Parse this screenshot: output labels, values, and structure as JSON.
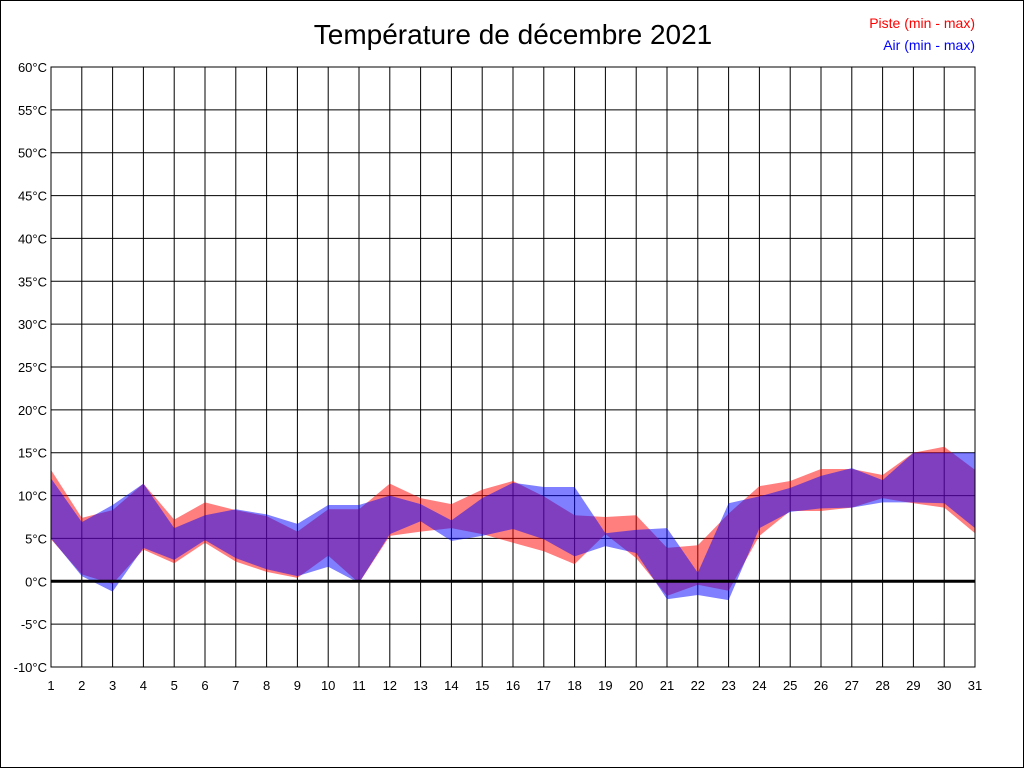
{
  "chart_data": {
    "type": "area",
    "title": "Température de décembre 2021",
    "xlabel": "",
    "ylabel": "",
    "x": [
      1,
      2,
      3,
      4,
      5,
      6,
      7,
      8,
      9,
      10,
      11,
      12,
      13,
      14,
      15,
      16,
      17,
      18,
      19,
      20,
      21,
      22,
      23,
      24,
      25,
      26,
      27,
      28,
      29,
      30,
      31
    ],
    "xlim": [
      1,
      31
    ],
    "ylim": [
      -10,
      60
    ],
    "yticks": [
      -10,
      -5,
      0,
      5,
      10,
      15,
      20,
      25,
      30,
      35,
      40,
      45,
      50,
      55,
      60
    ],
    "ytick_suffix": "°C",
    "grid": true,
    "legend_position": "top-right",
    "series": [
      {
        "name": "Piste (min - max)",
        "color": "#ff0000",
        "max": [
          13.0,
          7.4,
          8.3,
          11.4,
          7.2,
          9.2,
          8.3,
          7.6,
          5.8,
          8.4,
          8.4,
          11.4,
          9.7,
          9.0,
          10.7,
          11.7,
          9.9,
          7.7,
          7.5,
          7.7,
          3.9,
          4.2,
          7.9,
          11.1,
          11.7,
          13.1,
          13.1,
          12.4,
          15.0,
          15.7,
          13.0
        ],
        "min": [
          4.9,
          0.8,
          -0.3,
          3.7,
          2.1,
          4.5,
          2.3,
          1.1,
          0.4,
          3.0,
          -0.2,
          5.3,
          5.8,
          6.2,
          5.5,
          4.5,
          3.5,
          2.0,
          5.5,
          2.7,
          -1.7,
          -0.4,
          -1.1,
          5.3,
          8.2,
          8.2,
          8.6,
          9.7,
          9.1,
          8.6,
          5.6
        ]
      },
      {
        "name": "Air (min - max)",
        "color": "#0000ff",
        "max": [
          12.0,
          6.9,
          8.9,
          11.4,
          6.2,
          7.7,
          8.4,
          7.8,
          6.7,
          8.9,
          8.9,
          10.0,
          9.0,
          7.1,
          9.7,
          11.5,
          11.0,
          11.0,
          5.6,
          6.0,
          6.2,
          1.0,
          9.1,
          9.9,
          10.9,
          12.3,
          13.2,
          11.8,
          15.0,
          15.0,
          15.0
        ],
        "min": [
          5.0,
          0.6,
          -1.2,
          3.9,
          2.5,
          4.8,
          2.7,
          1.4,
          0.6,
          1.7,
          -0.2,
          5.5,
          7.0,
          4.7,
          5.3,
          6.1,
          4.9,
          2.9,
          4.1,
          3.3,
          -2.1,
          -1.6,
          -2.2,
          6.2,
          8.1,
          8.5,
          8.6,
          9.2,
          9.2,
          9.1,
          6.2
        ]
      }
    ]
  }
}
